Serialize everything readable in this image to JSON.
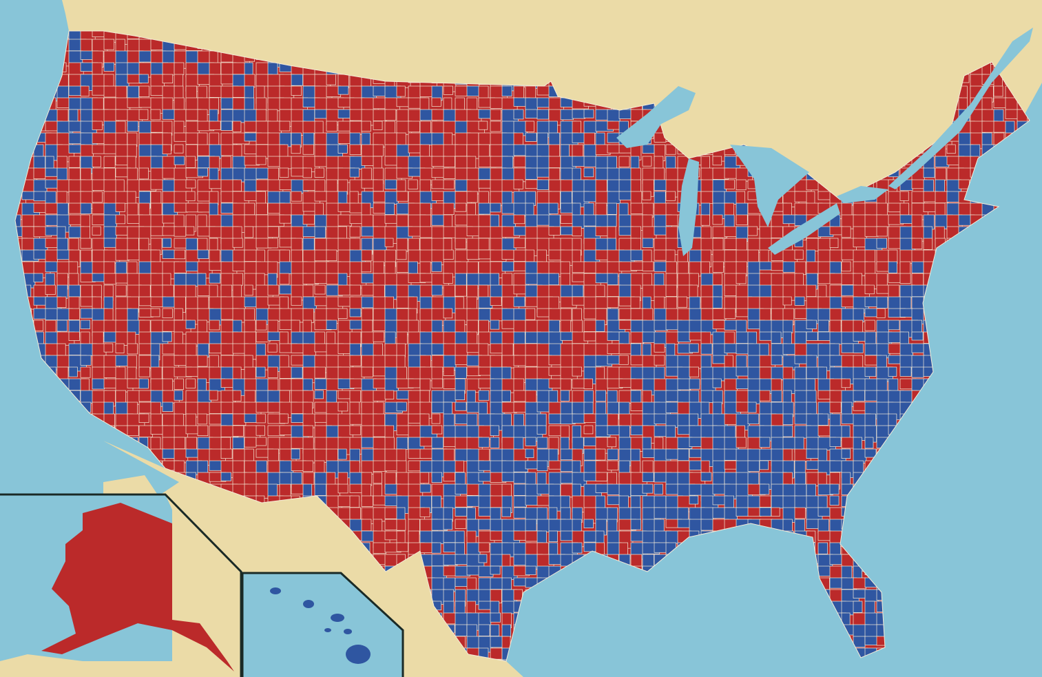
{
  "map": {
    "colors": {
      "ocean": "#88c5d8",
      "land": "#ebdba7",
      "red": "#bb2a2a",
      "blue": "#2f56a1",
      "border": "#f5ecd8",
      "inset": "#1a2a26"
    }
  }
}
